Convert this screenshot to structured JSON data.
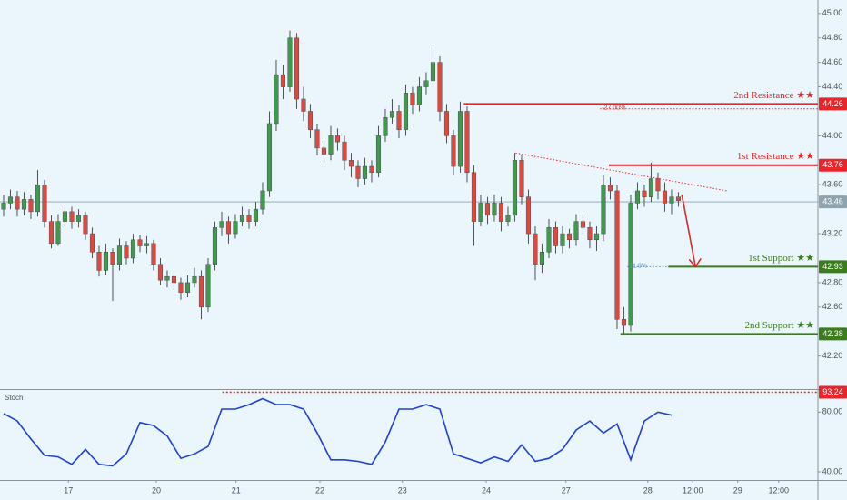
{
  "chart_data": [
    {
      "type": "candlestick",
      "up_color": "#3f9a4c",
      "down_color": "#e0483e",
      "wick_color": "#4a4f5a",
      "xlim": [
        -0.53,
        119.47
      ],
      "ylim": [
        41.93,
        45.11
      ],
      "yticks": [
        {
          "value": 45,
          "label": "45.00"
        },
        {
          "value": 44.8,
          "label": "44.80"
        },
        {
          "value": 44.6,
          "label": "44.60"
        },
        {
          "value": 44.4,
          "label": "44.40"
        },
        {
          "value": 44,
          "label": "44.00"
        },
        {
          "value": 43.6,
          "label": "43.60"
        },
        {
          "value": 43.2,
          "label": "43.20"
        },
        {
          "value": 42.8,
          "label": "42.80"
        },
        {
          "value": 42.6,
          "label": "42.60"
        },
        {
          "value": 42.2,
          "label": "42.20"
        }
      ],
      "xticks": [
        {
          "value": 9.5,
          "label": "17"
        },
        {
          "value": 22.4,
          "label": "20"
        },
        {
          "value": 34.1,
          "label": "21"
        },
        {
          "value": 46.4,
          "label": "22"
        },
        {
          "value": 58.5,
          "label": "23"
        },
        {
          "value": 70.8,
          "label": "24"
        },
        {
          "value": 82.5,
          "label": "27"
        },
        {
          "value": 94.5,
          "label": "28"
        },
        {
          "value": 101.1,
          "label": "12:00"
        },
        {
          "value": 107.7,
          "label": "29"
        },
        {
          "value": 113.7,
          "label": "12:00"
        }
      ],
      "ohlc": [
        [
          43.4,
          43.52,
          43.34,
          43.45
        ],
        [
          43.45,
          43.56,
          43.4,
          43.5
        ],
        [
          43.5,
          43.55,
          43.34,
          43.4
        ],
        [
          43.4,
          43.54,
          43.35,
          43.48
        ],
        [
          43.48,
          43.52,
          43.32,
          43.38
        ],
        [
          43.38,
          43.72,
          43.34,
          43.6
        ],
        [
          43.6,
          43.64,
          43.25,
          43.3
        ],
        [
          43.3,
          43.35,
          43.08,
          43.12
        ],
        [
          43.12,
          43.36,
          43.1,
          43.3
        ],
        [
          43.3,
          43.44,
          43.26,
          43.38
        ],
        [
          43.38,
          43.42,
          43.24,
          43.3
        ],
        [
          43.3,
          43.4,
          43.25,
          43.35
        ],
        [
          43.35,
          43.38,
          43.15,
          43.2
        ],
        [
          43.2,
          43.25,
          43.0,
          43.05
        ],
        [
          43.05,
          43.1,
          42.85,
          42.9
        ],
        [
          42.9,
          43.12,
          42.86,
          43.05
        ],
        [
          43.05,
          43.08,
          42.65,
          42.95
        ],
        [
          42.95,
          43.16,
          42.9,
          43.1
        ],
        [
          43.1,
          43.14,
          42.95,
          43.0
        ],
        [
          43.0,
          43.2,
          42.96,
          43.15
        ],
        [
          43.15,
          43.19,
          43.05,
          43.1
        ],
        [
          43.1,
          43.18,
          43.04,
          43.12
        ],
        [
          43.12,
          43.15,
          42.9,
          42.95
        ],
        [
          42.95,
          43.0,
          42.78,
          42.82
        ],
        [
          42.82,
          42.9,
          42.76,
          42.85
        ],
        [
          42.85,
          42.9,
          42.74,
          42.8
        ],
        [
          42.8,
          42.84,
          42.66,
          42.72
        ],
        [
          42.72,
          42.86,
          42.68,
          42.8
        ],
        [
          42.8,
          42.92,
          42.76,
          42.85
        ],
        [
          42.85,
          42.9,
          42.5,
          42.6
        ],
        [
          42.6,
          43.0,
          42.56,
          42.95
        ],
        [
          42.95,
          43.3,
          42.9,
          43.25
        ],
        [
          43.25,
          43.38,
          43.18,
          43.3
        ],
        [
          43.3,
          43.34,
          43.12,
          43.2
        ],
        [
          43.2,
          43.36,
          43.16,
          43.3
        ],
        [
          43.3,
          43.42,
          43.26,
          43.35
        ],
        [
          43.35,
          43.4,
          43.24,
          43.3
        ],
        [
          43.3,
          43.46,
          43.26,
          43.4
        ],
        [
          43.4,
          43.62,
          43.36,
          43.55
        ],
        [
          43.55,
          44.2,
          43.5,
          44.1
        ],
        [
          44.1,
          44.62,
          44.04,
          44.5
        ],
        [
          44.5,
          44.58,
          44.3,
          44.4
        ],
        [
          44.4,
          44.86,
          44.36,
          44.8
        ],
        [
          44.8,
          44.84,
          44.22,
          44.3
        ],
        [
          44.3,
          44.4,
          44.12,
          44.2
        ],
        [
          44.2,
          44.26,
          43.98,
          44.05
        ],
        [
          44.05,
          44.1,
          43.84,
          43.9
        ],
        [
          43.9,
          43.96,
          43.78,
          43.85
        ],
        [
          43.85,
          44.08,
          43.8,
          44.0
        ],
        [
          44.0,
          44.06,
          43.88,
          43.95
        ],
        [
          43.95,
          44.0,
          43.72,
          43.8
        ],
        [
          43.8,
          43.86,
          43.66,
          43.75
        ],
        [
          43.75,
          43.8,
          43.58,
          43.65
        ],
        [
          43.65,
          43.82,
          43.6,
          43.75
        ],
        [
          43.75,
          43.8,
          43.62,
          43.7
        ],
        [
          43.7,
          44.08,
          43.66,
          44.0
        ],
        [
          44.0,
          44.22,
          43.95,
          44.15
        ],
        [
          44.15,
          44.3,
          44.1,
          44.2
        ],
        [
          44.2,
          44.25,
          43.98,
          44.05
        ],
        [
          44.05,
          44.42,
          44.0,
          44.35
        ],
        [
          44.35,
          44.4,
          44.18,
          44.25
        ],
        [
          44.25,
          44.48,
          44.2,
          44.4
        ],
        [
          44.4,
          44.52,
          44.34,
          44.45
        ],
        [
          44.45,
          44.75,
          44.4,
          44.6
        ],
        [
          44.6,
          44.65,
          44.12,
          44.2
        ],
        [
          44.2,
          44.26,
          43.94,
          44.0
        ],
        [
          44.0,
          44.05,
          43.68,
          43.75
        ],
        [
          43.75,
          44.28,
          43.7,
          44.2
        ],
        [
          44.2,
          44.24,
          43.62,
          43.7
        ],
        [
          43.7,
          43.76,
          43.1,
          43.3
        ],
        [
          43.3,
          43.52,
          43.26,
          43.45
        ],
        [
          43.45,
          43.5,
          43.28,
          43.35
        ],
        [
          43.35,
          43.52,
          43.3,
          43.45
        ],
        [
          43.45,
          43.5,
          43.22,
          43.3
        ],
        [
          43.3,
          43.42,
          43.26,
          43.35
        ],
        [
          43.35,
          43.86,
          43.3,
          43.8
        ],
        [
          43.8,
          43.84,
          43.44,
          43.5
        ],
        [
          43.5,
          43.56,
          43.12,
          43.2
        ],
        [
          43.2,
          43.26,
          42.82,
          42.95
        ],
        [
          42.95,
          43.12,
          42.88,
          43.05
        ],
        [
          43.05,
          43.32,
          43.0,
          43.25
        ],
        [
          43.25,
          43.3,
          43.04,
          43.1
        ],
        [
          43.1,
          43.26,
          43.04,
          43.2
        ],
        [
          43.2,
          43.24,
          43.08,
          43.15
        ],
        [
          43.15,
          43.36,
          43.1,
          43.3
        ],
        [
          43.3,
          43.34,
          43.18,
          43.25
        ],
        [
          43.25,
          43.3,
          43.08,
          43.15
        ],
        [
          43.15,
          43.26,
          43.06,
          43.2
        ],
        [
          43.2,
          43.68,
          43.14,
          43.6
        ],
        [
          43.6,
          43.66,
          43.48,
          43.55
        ],
        [
          43.55,
          43.6,
          42.42,
          42.5
        ],
        [
          42.5,
          42.6,
          42.38,
          42.45
        ],
        [
          42.45,
          43.52,
          42.4,
          43.45
        ],
        [
          43.45,
          43.62,
          43.4,
          43.55
        ],
        [
          43.55,
          43.6,
          43.42,
          43.5
        ],
        [
          43.5,
          43.78,
          43.46,
          43.65
        ],
        [
          43.65,
          43.7,
          43.48,
          43.55
        ],
        [
          43.55,
          43.62,
          43.38,
          43.45
        ],
        [
          43.45,
          43.56,
          43.36,
          43.5
        ],
        [
          43.5,
          43.54,
          43.42,
          43.47
        ]
      ],
      "last_price": 43.46,
      "last_price_color": "#8ea3ad",
      "levels": [
        {
          "label": "2nd Resistance ★★",
          "value": 44.26,
          "start": 67.5,
          "color": "#e8252b"
        },
        {
          "label": "1st Resistance ★★",
          "value": 43.76,
          "start": 88.8,
          "color": "#e8252b"
        },
        {
          "label": "1st Support ★★",
          "value": 42.93,
          "start": 97.5,
          "color": "#3b7d1d"
        },
        {
          "label": "2nd Support ★★",
          "value": 42.38,
          "start": 90.5,
          "color": "#3b7d1d"
        }
      ],
      "fib": [
        {
          "label": "-27.00%",
          "value": 44.22,
          "start": 87.5,
          "end": 119.47,
          "color": "#e8252b"
        },
        {
          "label": "61.8%",
          "value": 42.93,
          "start": 91.5,
          "end": 97.5,
          "color": "#4a90c8"
        }
      ],
      "trendline": {
        "points": [
          [
            75.1,
            43.86
          ],
          [
            106.1,
            43.55
          ]
        ],
        "color": "#e8252b"
      },
      "arrow": {
        "points": [
          [
            99.5,
            43.52
          ],
          [
            101.5,
            42.93
          ]
        ],
        "color": "#d42a2a"
      }
    },
    {
      "type": "line",
      "title": "Stoch",
      "color": "#1f3fd6",
      "ylim": [
        34.5,
        94.8
      ],
      "yticks": [
        {
          "value": 80,
          "label": "80.00"
        },
        {
          "value": 40,
          "label": "40.00"
        }
      ],
      "x": [
        0,
        2,
        4,
        6,
        8,
        10,
        12,
        14,
        16,
        18,
        20,
        22,
        24,
        26,
        28,
        30,
        32,
        34,
        36,
        38,
        40,
        42,
        44,
        46,
        48,
        50,
        52,
        54,
        56,
        58,
        60,
        62,
        64,
        66,
        68,
        70,
        72,
        74,
        76,
        78,
        80,
        82,
        84,
        86,
        88,
        90,
        92,
        94,
        96,
        98
      ],
      "values": [
        79,
        74,
        62,
        51,
        50,
        45,
        55,
        45,
        44,
        52,
        73,
        71,
        64,
        49,
        52,
        57,
        82,
        82,
        85,
        89,
        85,
        85,
        82,
        66,
        48,
        48,
        47,
        45,
        60,
        82,
        82,
        85,
        82,
        52,
        49,
        46,
        50,
        47,
        58,
        47,
        49,
        55,
        68,
        74,
        66,
        72,
        48,
        74,
        80,
        78
      ],
      "level": {
        "value": 93.24,
        "start": 32.1,
        "color": "#e8252b"
      }
    }
  ]
}
